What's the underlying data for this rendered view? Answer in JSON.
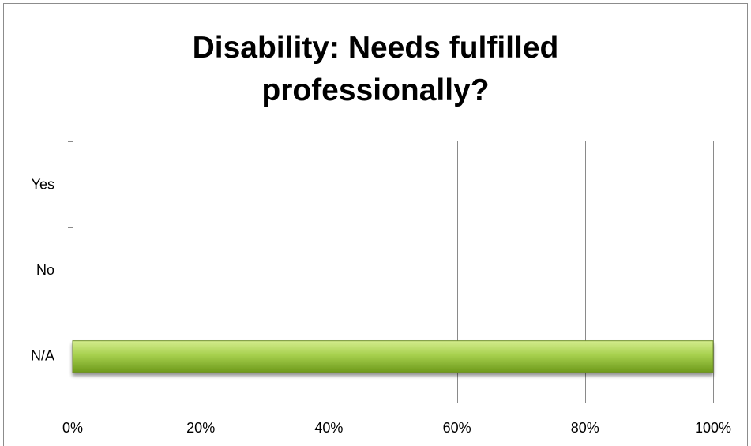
{
  "chart_data": {
    "type": "bar",
    "orientation": "horizontal",
    "title": "Disability: Needs fulfilled\nprofessionally?",
    "categories": [
      "Yes",
      "No",
      "N/A"
    ],
    "values": [
      0,
      0,
      100
    ],
    "value_unit": "%",
    "xlim": [
      0,
      100
    ],
    "x_ticks": [
      "0%",
      "20%",
      "40%",
      "60%",
      "80%",
      "100%"
    ],
    "x_tick_values": [
      0,
      20,
      40,
      60,
      80,
      100
    ],
    "grid": "vertical",
    "legend": "none",
    "bar_color": "#9bc53d"
  }
}
